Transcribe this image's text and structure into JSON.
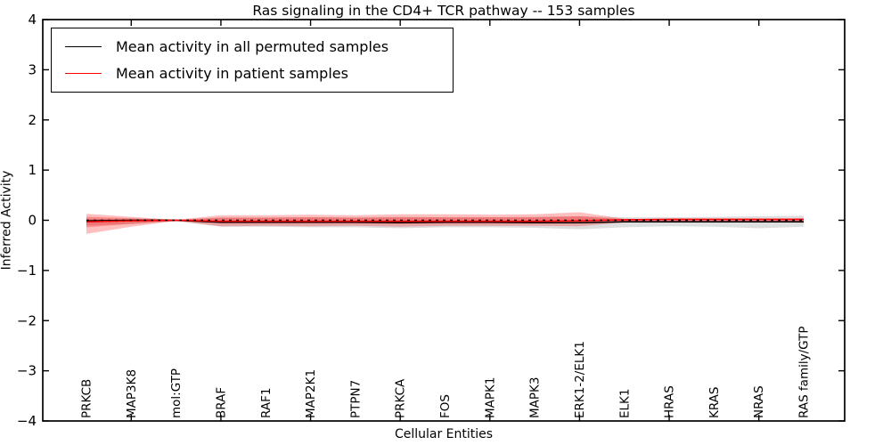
{
  "chart_data": {
    "type": "line",
    "title": "Ras signaling in the CD4+ TCR pathway -- 153 samples",
    "xlabel": "Cellular Entities",
    "ylabel": "Inferred Activity",
    "ylim": [
      -4,
      4
    ],
    "ytick_labels": [
      "−4",
      "−3",
      "−2",
      "−1",
      "0",
      "1",
      "2",
      "3",
      "4"
    ],
    "ytick_values": [
      -4,
      -3,
      -2,
      -1,
      0,
      1,
      2,
      3,
      4
    ],
    "xtick_mark_indices": [
      1,
      3,
      5,
      7,
      9,
      11,
      13,
      15
    ],
    "grid": false,
    "legend_position": "upper left",
    "categories": [
      "PRKCB",
      "MAP3K8",
      "mol:GTP",
      "BRAF",
      "RAF1",
      "MAP2K1",
      "PTPN7",
      "PRKCA",
      "FOS",
      "MAPK1",
      "MAPK3",
      "ERK1-2/ELK1",
      "ELK1",
      "HRAS",
      "KRAS",
      "NRAS",
      "RAS family/GTP"
    ],
    "series": [
      {
        "name": "Mean activity in all permuted samples",
        "color": "#000000",
        "style": "solid",
        "values": [
          -0.01,
          0.0,
          0.0,
          -0.04,
          -0.04,
          -0.04,
          -0.04,
          -0.05,
          -0.04,
          -0.04,
          -0.05,
          -0.05,
          -0.03,
          -0.03,
          -0.03,
          -0.03,
          -0.03
        ]
      },
      {
        "name": "Mean activity in patient samples",
        "color": "#ff0000",
        "style": "solid",
        "values": [
          -0.03,
          -0.01,
          0.0,
          -0.02,
          -0.02,
          -0.02,
          -0.02,
          -0.02,
          -0.02,
          -0.02,
          -0.02,
          -0.01,
          0.01,
          0.02,
          0.02,
          0.02,
          0.02
        ]
      }
    ],
    "bands": [
      {
        "name": "permuted-samples-range",
        "color": "#999999",
        "opacity": 0.32,
        "upper": [
          0.03,
          0.03,
          0.01,
          0.06,
          0.06,
          0.06,
          0.06,
          0.07,
          0.06,
          0.06,
          0.07,
          0.08,
          0.06,
          0.06,
          0.07,
          0.08,
          0.09
        ],
        "lower": [
          -0.1,
          -0.08,
          -0.02,
          -0.13,
          -0.13,
          -0.14,
          -0.14,
          -0.16,
          -0.14,
          -0.14,
          -0.15,
          -0.18,
          -0.14,
          -0.12,
          -0.13,
          -0.16,
          -0.13
        ]
      },
      {
        "name": "patient-samples-range-outer",
        "color": "#ff0000",
        "opacity": 0.25,
        "upper": [
          0.13,
          0.07,
          0.01,
          0.1,
          0.1,
          0.11,
          0.1,
          0.12,
          0.12,
          0.11,
          0.12,
          0.16,
          0.03,
          0.02,
          0.02,
          0.02,
          0.04
        ],
        "lower": [
          -0.27,
          -0.13,
          -0.01,
          -0.12,
          -0.11,
          -0.12,
          -0.11,
          -0.13,
          -0.11,
          -0.11,
          -0.11,
          -0.12,
          -0.04,
          -0.03,
          -0.03,
          -0.03,
          -0.05
        ]
      },
      {
        "name": "patient-samples-range-inner",
        "color": "#ff0000",
        "opacity": 0.28,
        "upper": [
          0.07,
          0.04,
          0.01,
          0.05,
          0.05,
          0.06,
          0.05,
          0.06,
          0.06,
          0.06,
          0.06,
          0.08,
          0.02,
          0.01,
          0.01,
          0.01,
          0.02
        ],
        "lower": [
          -0.14,
          -0.07,
          -0.01,
          -0.06,
          -0.06,
          -0.06,
          -0.06,
          -0.07,
          -0.06,
          -0.06,
          -0.06,
          -0.06,
          -0.02,
          -0.02,
          -0.02,
          -0.02,
          -0.03
        ]
      }
    ],
    "zero_line": {
      "value": 0,
      "color": "#000000",
      "style": "dashed"
    }
  },
  "legend": {
    "items": [
      {
        "label": "Mean activity in all permuted samples",
        "color": "#000000"
      },
      {
        "label": "Mean activity in patient samples",
        "color": "#ff0000"
      }
    ]
  }
}
